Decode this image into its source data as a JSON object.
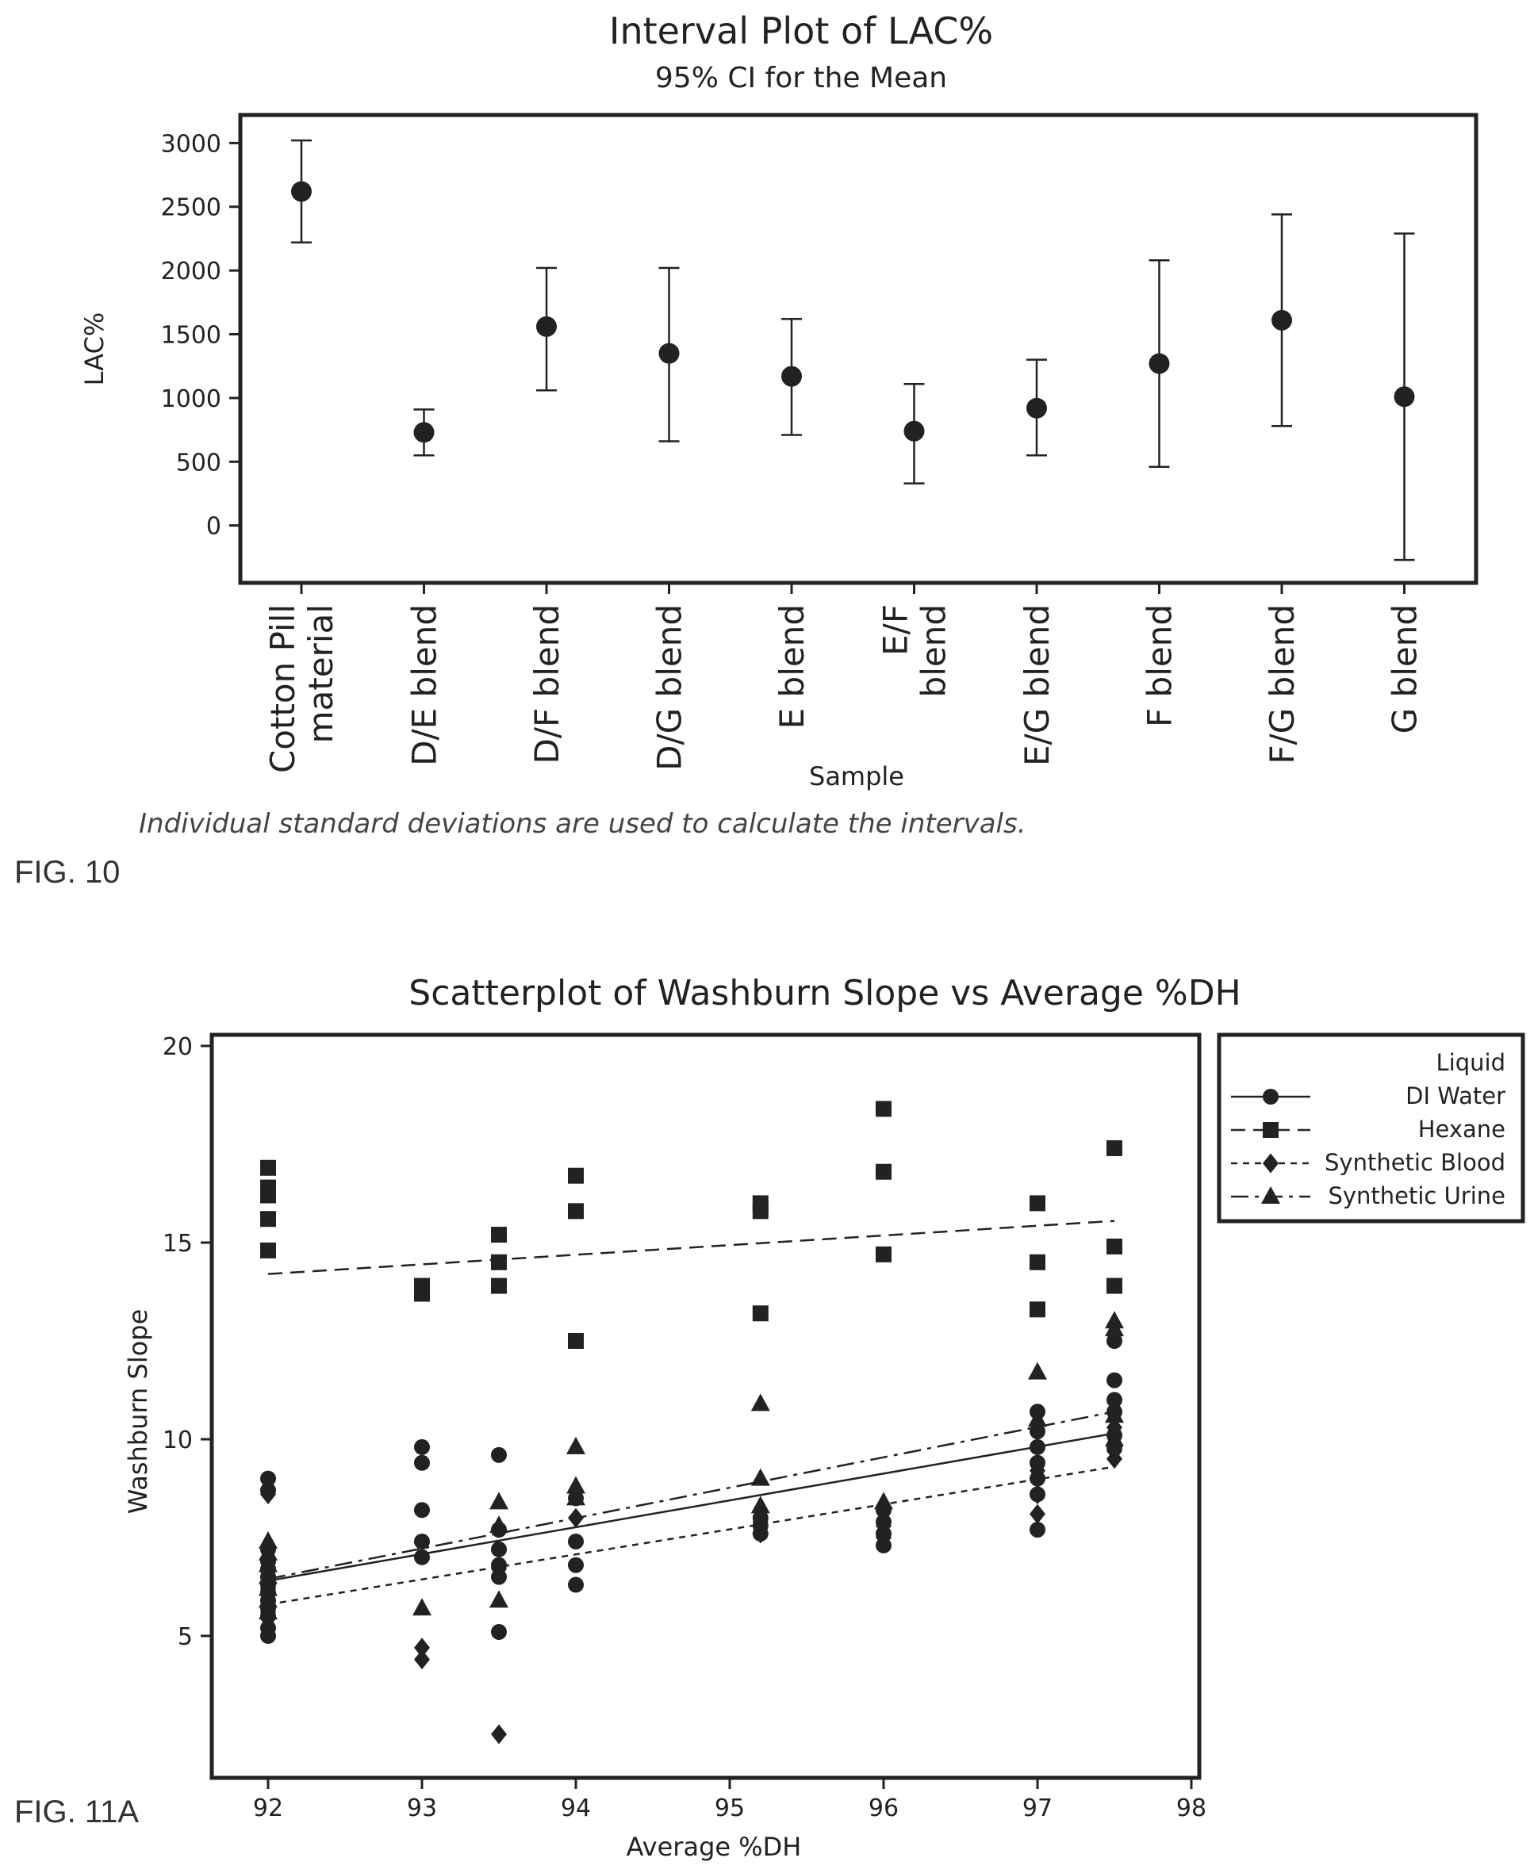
{
  "chart_data": [
    {
      "type": "interval",
      "title": "Interval Plot of LAC%",
      "subtitle": "95% CI for the Mean",
      "xlabel": "Sample",
      "ylabel": "LAC%",
      "ylim": [
        -450,
        3220
      ],
      "yticks": [
        "3000",
        "2500",
        "2000",
        "1500",
        "1000",
        "500",
        "0"
      ],
      "ytick_values": [
        3000,
        2500,
        2000,
        1500,
        1000,
        500,
        0
      ],
      "grid": false,
      "footnote": "Individual standard deviations are used to calculate the intervals.",
      "figure_label": "FIG. 10",
      "categories": [
        [
          "Cotton Pill",
          "material"
        ],
        [
          "D/E blend"
        ],
        [
          "D/F blend"
        ],
        [
          "D/G blend"
        ],
        [
          "E blend"
        ],
        [
          "E/F",
          "blend"
        ],
        [
          "E/G blend"
        ],
        [
          "F blend"
        ],
        [
          "F/G blend"
        ],
        [
          "G blend"
        ]
      ],
      "means": [
        2620,
        730,
        1560,
        1350,
        1170,
        740,
        920,
        1270,
        1610,
        1010
      ],
      "lower": [
        2220,
        550,
        1060,
        660,
        710,
        330,
        550,
        460,
        780,
        -270
      ],
      "upper": [
        3020,
        910,
        2020,
        2020,
        1620,
        1110,
        1300,
        2080,
        2440,
        2290
      ]
    },
    {
      "type": "scatter",
      "title": "Scatterplot of Washburn Slope vs Average %DH",
      "xlabel": "Average %DH",
      "ylabel": "Washburn Slope",
      "xlim": [
        91.6,
        98.4
      ],
      "ylim": [
        2.0,
        20.2
      ],
      "xticks": [
        "92",
        "93",
        "94",
        "95",
        "96",
        "97",
        "98"
      ],
      "xtick_values": [
        92,
        93,
        94,
        95,
        96,
        97,
        98
      ],
      "yticks": [
        "20",
        "15",
        "10",
        "5"
      ],
      "ytick_values": [
        20,
        15,
        10,
        5
      ],
      "grid": false,
      "figure_label": "FIG. 11A",
      "legend": {
        "title": "Liquid",
        "placement": "right"
      },
      "series": [
        {
          "name": "DI Water",
          "marker": "circle",
          "line": "solid",
          "fit": [
            [
              92,
              6.4
            ],
            [
              97.5,
              10.15
            ]
          ],
          "points": [
            [
              92,
              9.0
            ],
            [
              92,
              8.7
            ],
            [
              92,
              7.2
            ],
            [
              92,
              6.9
            ],
            [
              92,
              6.7
            ],
            [
              92,
              6.5
            ],
            [
              92,
              6.3
            ],
            [
              92,
              6.1
            ],
            [
              92,
              5.9
            ],
            [
              92,
              5.7
            ],
            [
              92,
              5.5
            ],
            [
              92,
              5.2
            ],
            [
              92,
              5.0
            ],
            [
              93,
              9.8
            ],
            [
              93,
              9.4
            ],
            [
              93,
              8.2
            ],
            [
              93,
              7.4
            ],
            [
              93,
              7.0
            ],
            [
              93.5,
              9.6
            ],
            [
              93.5,
              7.7
            ],
            [
              93.5,
              7.2
            ],
            [
              93.5,
              6.8
            ],
            [
              93.5,
              6.5
            ],
            [
              93.5,
              5.1
            ],
            [
              94,
              8.5
            ],
            [
              94,
              7.4
            ],
            [
              94,
              6.8
            ],
            [
              94,
              6.3
            ],
            [
              95.2,
              8.0
            ],
            [
              95.2,
              7.8
            ],
            [
              95.2,
              7.6
            ],
            [
              96,
              8.2
            ],
            [
              96,
              7.9
            ],
            [
              96,
              7.6
            ],
            [
              96,
              7.3
            ],
            [
              97,
              10.7
            ],
            [
              97,
              10.2
            ],
            [
              97,
              9.8
            ],
            [
              97,
              9.4
            ],
            [
              97,
              9.0
            ],
            [
              97,
              8.6
            ],
            [
              97,
              7.7
            ],
            [
              97.5,
              11.5
            ],
            [
              97.5,
              11.0
            ],
            [
              97.5,
              10.7
            ],
            [
              97.5,
              10.1
            ],
            [
              97.5,
              9.8
            ],
            [
              97.5,
              12.5
            ]
          ]
        },
        {
          "name": "Hexane",
          "marker": "square",
          "line": "dashed",
          "fit": [
            [
              92,
              14.2
            ],
            [
              97.5,
              15.55
            ]
          ],
          "points": [
            [
              92,
              16.9
            ],
            [
              92,
              16.4
            ],
            [
              92,
              16.2
            ],
            [
              92,
              15.6
            ],
            [
              92,
              14.8
            ],
            [
              93,
              13.9
            ],
            [
              93,
              13.7
            ],
            [
              93.5,
              15.2
            ],
            [
              93.5,
              14.5
            ],
            [
              93.5,
              13.9
            ],
            [
              94,
              16.7
            ],
            [
              94,
              15.8
            ],
            [
              94,
              12.5
            ],
            [
              95.2,
              16.0
            ],
            [
              95.2,
              15.8
            ],
            [
              95.2,
              13.2
            ],
            [
              96,
              18.4
            ],
            [
              96,
              16.8
            ],
            [
              96,
              14.7
            ],
            [
              97,
              16.0
            ],
            [
              97,
              14.5
            ],
            [
              97,
              13.3
            ],
            [
              97.5,
              17.4
            ],
            [
              97.5,
              14.9
            ],
            [
              97.5,
              13.9
            ]
          ]
        },
        {
          "name": "Synthetic Blood",
          "marker": "diamond",
          "line": "dotted",
          "fit": [
            [
              92,
              5.8
            ],
            [
              97.5,
              9.3
            ]
          ],
          "points": [
            [
              92,
              8.6
            ],
            [
              92,
              6.2
            ],
            [
              92,
              5.9
            ],
            [
              92,
              5.6
            ],
            [
              93,
              4.7
            ],
            [
              93,
              4.4
            ],
            [
              93.5,
              2.5
            ],
            [
              93.5,
              6.7
            ],
            [
              94,
              8.0
            ],
            [
              95.2,
              7.9
            ],
            [
              95.2,
              7.6
            ],
            [
              96,
              7.8
            ],
            [
              96,
              7.5
            ],
            [
              97,
              9.2
            ],
            [
              97,
              8.6
            ],
            [
              97,
              8.1
            ],
            [
              97.5,
              9.5
            ],
            [
              97.5,
              9.7
            ],
            [
              97.5,
              10.3
            ]
          ]
        },
        {
          "name": "Synthetic Urine",
          "marker": "triangle",
          "line": "dashdot",
          "fit": [
            [
              92,
              6.45
            ],
            [
              97.5,
              10.7
            ]
          ],
          "points": [
            [
              92,
              7.4
            ],
            [
              92,
              7.1
            ],
            [
              92,
              6.8
            ],
            [
              92,
              6.5
            ],
            [
              92,
              6.2
            ],
            [
              92,
              5.9
            ],
            [
              92,
              5.6
            ],
            [
              93,
              5.7
            ],
            [
              93.5,
              8.4
            ],
            [
              93.5,
              7.8
            ],
            [
              93.5,
              5.9
            ],
            [
              94,
              9.8
            ],
            [
              94,
              8.8
            ],
            [
              94,
              8.5
            ],
            [
              95.2,
              10.9
            ],
            [
              95.2,
              9.0
            ],
            [
              95.2,
              8.3
            ],
            [
              96,
              8.4
            ],
            [
              97,
              11.7
            ],
            [
              97,
              10.5
            ],
            [
              97.5,
              13.0
            ],
            [
              97.5,
              12.8
            ],
            [
              97.5,
              10.6
            ],
            [
              97.5,
              10.0
            ]
          ]
        }
      ]
    }
  ]
}
